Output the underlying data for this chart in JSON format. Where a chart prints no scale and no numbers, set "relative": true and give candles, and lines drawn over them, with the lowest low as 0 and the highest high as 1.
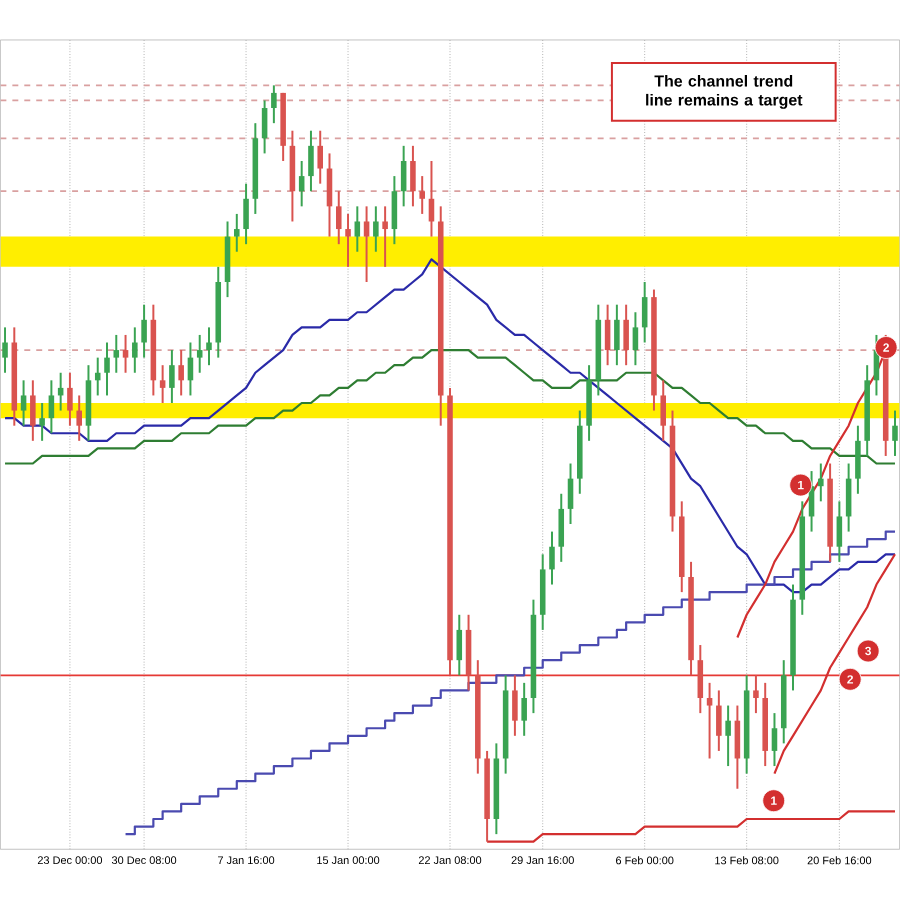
{
  "chart_data": {
    "type": "candlestick",
    "relative": true,
    "grid": "x",
    "categories": [
      null,
      null,
      null,
      null,
      null,
      null,
      null,
      "23 Dec 00:00",
      null,
      null,
      null,
      null,
      null,
      null,
      null,
      "30 Dec 08:00",
      null,
      null,
      null,
      null,
      null,
      null,
      null,
      null,
      null,
      null,
      "7 Jan 16:00",
      null,
      null,
      null,
      null,
      null,
      null,
      null,
      null,
      null,
      null,
      "15 Jan 00:00",
      null,
      null,
      null,
      null,
      null,
      null,
      null,
      null,
      null,
      null,
      "22 Jan 08:00",
      null,
      null,
      null,
      null,
      null,
      null,
      null,
      null,
      null,
      "29 Jan 16:00",
      null,
      null,
      null,
      null,
      null,
      null,
      null,
      null,
      null,
      null,
      "6 Feb 00:00",
      null,
      null,
      null,
      null,
      null,
      null,
      null,
      null,
      null,
      null,
      "13 Feb 08:00",
      null,
      null,
      null,
      null,
      null,
      null,
      null,
      null,
      null,
      "20 Feb 16:00",
      null,
      null,
      null,
      null,
      null,
      null
    ],
    "ohlc": [
      [
        0.64,
        0.68,
        0.62,
        0.66
      ],
      [
        0.66,
        0.68,
        0.55,
        0.57
      ],
      [
        0.57,
        0.61,
        0.55,
        0.59
      ],
      [
        0.59,
        0.61,
        0.53,
        0.55
      ],
      [
        0.55,
        0.58,
        0.53,
        0.56
      ],
      [
        0.56,
        0.61,
        0.54,
        0.59
      ],
      [
        0.59,
        0.62,
        0.57,
        0.6
      ],
      [
        0.6,
        0.62,
        0.55,
        0.57
      ],
      [
        0.57,
        0.59,
        0.53,
        0.55
      ],
      [
        0.55,
        0.63,
        0.53,
        0.61
      ],
      [
        0.61,
        0.64,
        0.59,
        0.62
      ],
      [
        0.62,
        0.66,
        0.59,
        0.64
      ],
      [
        0.64,
        0.67,
        0.62,
        0.65
      ],
      [
        0.65,
        0.67,
        0.62,
        0.64
      ],
      [
        0.64,
        0.68,
        0.62,
        0.66
      ],
      [
        0.66,
        0.71,
        0.64,
        0.69
      ],
      [
        0.69,
        0.71,
        0.59,
        0.61
      ],
      [
        0.61,
        0.63,
        0.58,
        0.6
      ],
      [
        0.6,
        0.65,
        0.58,
        0.63
      ],
      [
        0.63,
        0.65,
        0.59,
        0.61
      ],
      [
        0.61,
        0.66,
        0.59,
        0.64
      ],
      [
        0.64,
        0.67,
        0.62,
        0.65
      ],
      [
        0.65,
        0.68,
        0.63,
        0.66
      ],
      [
        0.66,
        0.76,
        0.64,
        0.74
      ],
      [
        0.74,
        0.82,
        0.72,
        0.8
      ],
      [
        0.8,
        0.83,
        0.78,
        0.81
      ],
      [
        0.81,
        0.87,
        0.79,
        0.85
      ],
      [
        0.85,
        0.95,
        0.83,
        0.93
      ],
      [
        0.93,
        0.98,
        0.91,
        0.97
      ],
      [
        0.97,
        1.0,
        0.95,
        0.99
      ],
      [
        0.99,
        0.99,
        0.9,
        0.92
      ],
      [
        0.92,
        0.94,
        0.82,
        0.86
      ],
      [
        0.86,
        0.9,
        0.84,
        0.88
      ],
      [
        0.88,
        0.94,
        0.86,
        0.92
      ],
      [
        0.92,
        0.94,
        0.87,
        0.89
      ],
      [
        0.89,
        0.91,
        0.8,
        0.84
      ],
      [
        0.84,
        0.86,
        0.79,
        0.81
      ],
      [
        0.81,
        0.83,
        0.76,
        0.8
      ],
      [
        0.8,
        0.84,
        0.78,
        0.82
      ],
      [
        0.82,
        0.84,
        0.74,
        0.8
      ],
      [
        0.8,
        0.84,
        0.78,
        0.82
      ],
      [
        0.82,
        0.84,
        0.76,
        0.81
      ],
      [
        0.81,
        0.88,
        0.79,
        0.86
      ],
      [
        0.86,
        0.92,
        0.84,
        0.9
      ],
      [
        0.9,
        0.92,
        0.84,
        0.86
      ],
      [
        0.86,
        0.88,
        0.83,
        0.85
      ],
      [
        0.85,
        0.9,
        0.8,
        0.82
      ],
      [
        0.82,
        0.84,
        0.55,
        0.59
      ],
      [
        0.59,
        0.6,
        0.22,
        0.24
      ],
      [
        0.24,
        0.3,
        0.22,
        0.28
      ],
      [
        0.28,
        0.3,
        0.2,
        0.22
      ],
      [
        0.22,
        0.24,
        0.09,
        0.11
      ],
      [
        0.11,
        0.12,
        0,
        0.03
      ],
      [
        0.03,
        0.13,
        0.01,
        0.11
      ],
      [
        0.11,
        0.22,
        0.09,
        0.2
      ],
      [
        0.2,
        0.22,
        0.14,
        0.16
      ],
      [
        0.16,
        0.21,
        0.14,
        0.19
      ],
      [
        0.19,
        0.32,
        0.17,
        0.3
      ],
      [
        0.3,
        0.38,
        0.28,
        0.36
      ],
      [
        0.36,
        0.41,
        0.34,
        0.39
      ],
      [
        0.39,
        0.46,
        0.37,
        0.44
      ],
      [
        0.44,
        0.5,
        0.42,
        0.48
      ],
      [
        0.48,
        0.57,
        0.46,
        0.55
      ],
      [
        0.55,
        0.63,
        0.53,
        0.61
      ],
      [
        0.61,
        0.71,
        0.59,
        0.69
      ],
      [
        0.69,
        0.71,
        0.63,
        0.65
      ],
      [
        0.65,
        0.71,
        0.63,
        0.69
      ],
      [
        0.69,
        0.71,
        0.63,
        0.65
      ],
      [
        0.65,
        0.7,
        0.63,
        0.68
      ],
      [
        0.68,
        0.74,
        0.66,
        0.72
      ],
      [
        0.72,
        0.73,
        0.57,
        0.59
      ],
      [
        0.59,
        0.61,
        0.53,
        0.55
      ],
      [
        0.55,
        0.57,
        0.41,
        0.43
      ],
      [
        0.43,
        0.45,
        0.33,
        0.35
      ],
      [
        0.35,
        0.37,
        0.22,
        0.24
      ],
      [
        0.24,
        0.26,
        0.17,
        0.19
      ],
      [
        0.19,
        0.21,
        0.11,
        0.18
      ],
      [
        0.18,
        0.2,
        0.12,
        0.14
      ],
      [
        0.14,
        0.18,
        0.1,
        0.16
      ],
      [
        0.16,
        0.18,
        0.07,
        0.11
      ],
      [
        0.11,
        0.22,
        0.09,
        0.2
      ],
      [
        0.2,
        0.22,
        0.17,
        0.19
      ],
      [
        0.19,
        0.21,
        0.1,
        0.12
      ],
      [
        0.12,
        0.17,
        0.1,
        0.15
      ],
      [
        0.15,
        0.24,
        0.13,
        0.22
      ],
      [
        0.22,
        0.34,
        0.2,
        0.32
      ],
      [
        0.32,
        0.45,
        0.3,
        0.43
      ],
      [
        0.43,
        0.49,
        0.41,
        0.47
      ],
      [
        0.47,
        0.5,
        0.45,
        0.48
      ],
      [
        0.48,
        0.5,
        0.37,
        0.39
      ],
      [
        0.39,
        0.45,
        0.37,
        0.43
      ],
      [
        0.43,
        0.5,
        0.41,
        0.48
      ],
      [
        0.48,
        0.55,
        0.46,
        0.53
      ],
      [
        0.53,
        0.63,
        0.51,
        0.61
      ],
      [
        0.61,
        0.67,
        0.59,
        0.65
      ],
      [
        0.65,
        0.67,
        0.51,
        0.53
      ],
      [
        0.53,
        0.57,
        0.51,
        0.55
      ]
    ],
    "series": [
      {
        "type": "line",
        "color": "#2a2aa8",
        "values": [
          0.56,
          0.56,
          0.55,
          0.55,
          0.55,
          0.54,
          0.54,
          0.54,
          0.54,
          0.53,
          0.53,
          0.53,
          0.54,
          0.54,
          0.54,
          0.55,
          0.55,
          0.55,
          0.55,
          0.55,
          0.56,
          0.56,
          0.56,
          0.57,
          0.58,
          0.59,
          0.6,
          0.62,
          0.63,
          0.64,
          0.65,
          0.67,
          0.68,
          0.68,
          0.68,
          0.69,
          0.69,
          0.69,
          0.7,
          0.7,
          0.71,
          0.72,
          0.73,
          0.73,
          0.74,
          0.75,
          0.77,
          0.76,
          0.75,
          0.74,
          0.73,
          0.72,
          0.71,
          0.69,
          0.68,
          0.67,
          0.67,
          0.66,
          0.65,
          0.64,
          0.63,
          0.62,
          0.62,
          0.61,
          0.6,
          0.59,
          0.58,
          0.57,
          0.56,
          0.55,
          0.54,
          0.53,
          0.52,
          0.5,
          0.48,
          0.47,
          0.45,
          0.43,
          0.41,
          0.39,
          0.38,
          0.36,
          0.34,
          0.34,
          0.34,
          0.33,
          0.33,
          0.34,
          0.34,
          0.35,
          0.36,
          0.36,
          0.37,
          0.37,
          0.37,
          0.38,
          0.38
        ]
      },
      {
        "type": "line",
        "color": "#2e7d32",
        "values": [
          0.5,
          0.5,
          0.5,
          0.5,
          0.51,
          0.51,
          0.51,
          0.51,
          0.51,
          0.51,
          0.52,
          0.52,
          0.52,
          0.52,
          0.52,
          0.53,
          0.53,
          0.53,
          0.53,
          0.54,
          0.54,
          0.54,
          0.54,
          0.55,
          0.55,
          0.55,
          0.55,
          0.56,
          0.56,
          0.56,
          0.57,
          0.57,
          0.58,
          0.58,
          0.59,
          0.59,
          0.6,
          0.6,
          0.61,
          0.61,
          0.62,
          0.62,
          0.63,
          0.63,
          0.64,
          0.64,
          0.65,
          0.65,
          0.65,
          0.65,
          0.65,
          0.64,
          0.64,
          0.64,
          0.64,
          0.63,
          0.62,
          0.61,
          0.61,
          0.6,
          0.6,
          0.6,
          0.61,
          0.61,
          0.61,
          0.61,
          0.61,
          0.62,
          0.62,
          0.62,
          0.62,
          0.61,
          0.6,
          0.6,
          0.59,
          0.58,
          0.58,
          0.57,
          0.56,
          0.56,
          0.55,
          0.55,
          0.54,
          0.54,
          0.54,
          0.53,
          0.53,
          0.52,
          0.52,
          0.52,
          0.51,
          0.51,
          0.51,
          0.51,
          0.5,
          0.5,
          0.5
        ]
      },
      {
        "type": "step",
        "color": "#4a4ab0",
        "values": [
          null,
          null,
          null,
          null,
          null,
          null,
          null,
          null,
          null,
          null,
          null,
          null,
          null,
          0.01,
          0.02,
          0.02,
          0.03,
          0.04,
          0.04,
          0.05,
          0.05,
          0.06,
          0.06,
          0.07,
          0.07,
          0.08,
          0.08,
          0.09,
          0.09,
          0.1,
          0.1,
          0.11,
          0.11,
          0.12,
          0.12,
          0.13,
          0.13,
          0.14,
          0.14,
          0.15,
          0.15,
          0.16,
          0.17,
          0.17,
          0.18,
          0.18,
          0.19,
          0.2,
          0.2,
          0.2,
          0.21,
          0.21,
          0.21,
          0.22,
          0.22,
          0.22,
          0.23,
          0.23,
          0.24,
          0.24,
          0.25,
          0.25,
          0.26,
          0.26,
          0.27,
          0.27,
          0.28,
          0.29,
          0.29,
          0.3,
          0.3,
          0.31,
          0.31,
          0.32,
          0.32,
          0.32,
          0.33,
          0.33,
          0.33,
          0.33,
          0.34,
          0.34,
          0.34,
          0.35,
          0.35,
          0.36,
          0.36,
          0.37,
          0.37,
          0.38,
          0.38,
          0.39,
          0.39,
          0.4,
          0.4,
          0.41,
          0.41
        ]
      },
      {
        "type": "line",
        "color": "#d32f2f",
        "values": [
          null,
          null,
          null,
          null,
          null,
          null,
          null,
          null,
          null,
          null,
          null,
          null,
          null,
          null,
          null,
          null,
          null,
          null,
          null,
          null,
          null,
          null,
          null,
          null,
          null,
          null,
          null,
          null,
          null,
          null,
          null,
          null,
          null,
          null,
          null,
          null,
          null,
          null,
          null,
          null,
          null,
          null,
          null,
          null,
          null,
          null,
          null,
          null,
          null,
          null,
          null,
          null,
          0.0,
          0.0,
          0.0,
          0.0,
          0.0,
          0.0,
          0.01,
          0.01,
          0.01,
          0.01,
          0.01,
          0.01,
          0.01,
          0.01,
          0.01,
          0.01,
          0.01,
          0.02,
          0.02,
          0.02,
          0.02,
          0.02,
          0.02,
          0.02,
          0.02,
          0.02,
          0.02,
          0.02,
          0.03,
          0.03,
          0.03,
          0.03,
          0.03,
          0.03,
          0.03,
          0.03,
          0.03,
          0.03,
          0.03,
          0.04,
          0.04,
          0.04,
          0.04,
          0.04,
          0.04
        ]
      },
      {
        "type": "line",
        "color": "#d32f2f",
        "values": [
          null,
          null,
          null,
          null,
          null,
          null,
          null,
          null,
          null,
          null,
          null,
          null,
          null,
          null,
          null,
          null,
          null,
          null,
          null,
          null,
          null,
          null,
          null,
          null,
          null,
          null,
          null,
          null,
          null,
          null,
          null,
          null,
          null,
          null,
          null,
          null,
          null,
          null,
          null,
          null,
          null,
          null,
          null,
          null,
          null,
          null,
          null,
          null,
          null,
          null,
          null,
          null,
          null,
          null,
          null,
          null,
          null,
          null,
          null,
          null,
          null,
          null,
          null,
          null,
          null,
          null,
          null,
          null,
          null,
          null,
          null,
          null,
          null,
          null,
          null,
          null,
          null,
          null,
          null,
          null,
          null,
          null,
          null,
          0.09,
          0.12,
          0.14,
          0.16,
          0.18,
          0.2,
          0.23,
          0.25,
          0.27,
          0.29,
          0.31,
          0.34,
          0.36,
          0.38
        ]
      },
      {
        "type": "line",
        "color": "#d32f2f",
        "values": [
          null,
          null,
          null,
          null,
          null,
          null,
          null,
          null,
          null,
          null,
          null,
          null,
          null,
          null,
          null,
          null,
          null,
          null,
          null,
          null,
          null,
          null,
          null,
          null,
          null,
          null,
          null,
          null,
          null,
          null,
          null,
          null,
          null,
          null,
          null,
          null,
          null,
          null,
          null,
          null,
          null,
          null,
          null,
          null,
          null,
          null,
          null,
          null,
          null,
          null,
          null,
          null,
          null,
          null,
          null,
          null,
          null,
          null,
          null,
          null,
          null,
          null,
          null,
          null,
          null,
          null,
          null,
          null,
          null,
          null,
          null,
          null,
          null,
          null,
          null,
          null,
          null,
          null,
          null,
          0.27,
          0.3,
          0.32,
          0.34,
          0.37,
          0.39,
          0.41,
          0.44,
          0.46,
          0.48,
          0.51,
          0.53,
          0.55,
          0.58,
          0.6,
          0.62,
          0.65,
          null
        ]
      }
    ],
    "bands": [
      {
        "axis": "y",
        "from": 0.76,
        "to": 0.8,
        "color": "#ffee00"
      },
      {
        "axis": "y",
        "from": 0.56,
        "to": 0.58,
        "color": "#ffee00"
      }
    ],
    "ref_lines": [
      {
        "axis": "y",
        "value": 0.22,
        "color": "#e53935",
        "line_style": "solid"
      },
      {
        "axis": "y",
        "value": 1.0,
        "color": "#d9a0a0",
        "line_style": "dashed"
      },
      {
        "axis": "y",
        "value": 0.98,
        "color": "#d9a0a0",
        "line_style": "dashed"
      },
      {
        "axis": "y",
        "value": 0.93,
        "color": "#d9a0a0",
        "line_style": "dashed"
      },
      {
        "axis": "y",
        "value": 0.86,
        "color": "#d9a0a0",
        "line_style": "dashed"
      },
      {
        "axis": "y",
        "value": 0.65,
        "color": "#d9a0a0",
        "line_style": "dashed"
      }
    ],
    "annotations": [
      "The channel trend line remains a target",
      "1",
      "2",
      "3",
      "1",
      "2"
    ]
  }
}
